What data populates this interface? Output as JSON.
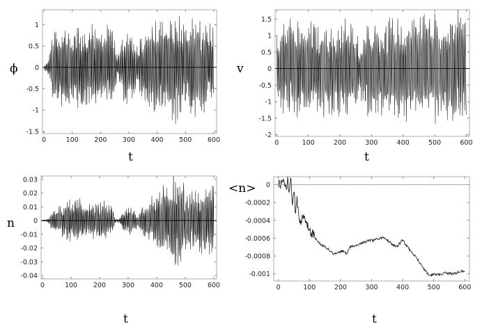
{
  "chart_data": [
    {
      "type": "line",
      "ylabel": "ϕ",
      "xlabel": "t",
      "xlim": [
        -5,
        610
      ],
      "ylim": [
        -1.55,
        1.35
      ],
      "xticks": [
        0,
        100,
        200,
        300,
        400,
        500,
        600
      ],
      "yticks": [
        1,
        0.5,
        0,
        -0.5,
        -1,
        -1.5
      ],
      "ytick_labels": [
        "1",
        "0.5",
        "0",
        "-0.5",
        "-1",
        "-1.5"
      ],
      "zero_line": true,
      "series": [
        {
          "amplitude_envelope": [
            [
              0,
              0.05
            ],
            [
              5,
              0.1
            ],
            [
              10,
              0.2
            ],
            [
              20,
              0.4
            ],
            [
              30,
              0.9
            ],
            [
              40,
              1.0
            ],
            [
              60,
              1.05
            ],
            [
              80,
              1.1
            ],
            [
              100,
              1.05
            ],
            [
              120,
              1.15
            ],
            [
              150,
              1.1
            ],
            [
              170,
              1.1
            ],
            [
              185,
              0.95
            ],
            [
              200,
              1.0
            ],
            [
              220,
              1.1
            ],
            [
              240,
              1.05
            ],
            [
              250,
              0.9
            ],
            [
              258,
              0.35
            ],
            [
              268,
              0.35
            ],
            [
              280,
              0.85
            ],
            [
              300,
              0.9
            ],
            [
              310,
              0.95
            ],
            [
              320,
              0.6
            ],
            [
              335,
              0.5
            ],
            [
              345,
              0.9
            ],
            [
              365,
              1.0
            ],
            [
              385,
              1.15
            ],
            [
              400,
              1.2
            ],
            [
              420,
              1.2
            ],
            [
              440,
              1.3
            ],
            [
              460,
              1.35
            ],
            [
              480,
              1.3
            ],
            [
              500,
              1.25
            ],
            [
              520,
              1.25
            ],
            [
              540,
              1.2
            ],
            [
              560,
              1.15
            ],
            [
              580,
              1.1
            ],
            [
              595,
              1.05
            ]
          ]
        }
      ]
    },
    {
      "type": "line",
      "ylabel": "v",
      "xlabel": "t",
      "xlim": [
        -5,
        610
      ],
      "ylim": [
        -2.05,
        1.78
      ],
      "xticks": [
        0,
        100,
        200,
        300,
        400,
        500,
        600
      ],
      "yticks": [
        1.5,
        1,
        0.5,
        0,
        -0.5,
        -1,
        -1.5,
        -2
      ],
      "ytick_labels": [
        "1.5",
        "1",
        "0.5",
        "0",
        "-0.5",
        "-1",
        "-1.5",
        "-2"
      ],
      "zero_line": true,
      "series": [
        {
          "amplitude_envelope": [
            [
              0,
              1.1
            ],
            [
              10,
              1.3
            ],
            [
              20,
              1.4
            ],
            [
              40,
              1.55
            ],
            [
              60,
              1.6
            ],
            [
              80,
              1.5
            ],
            [
              100,
              1.55
            ],
            [
              120,
              1.6
            ],
            [
              150,
              1.6
            ],
            [
              180,
              1.55
            ],
            [
              210,
              1.6
            ],
            [
              240,
              1.55
            ],
            [
              255,
              1.2
            ],
            [
              262,
              0.6
            ],
            [
              270,
              1.3
            ],
            [
              300,
              1.6
            ],
            [
              330,
              1.6
            ],
            [
              360,
              1.65
            ],
            [
              400,
              1.65
            ],
            [
              430,
              1.6
            ],
            [
              460,
              1.75
            ],
            [
              480,
              1.8
            ],
            [
              520,
              1.75
            ],
            [
              560,
              1.8
            ],
            [
              590,
              1.85
            ],
            [
              600,
              1.8
            ]
          ]
        }
      ]
    },
    {
      "type": "line",
      "ylabel": "n",
      "xlabel": "t",
      "xlim": [
        -5,
        610
      ],
      "ylim": [
        -0.0425,
        0.0325
      ],
      "xticks": [
        0,
        100,
        200,
        300,
        400,
        500,
        600
      ],
      "yticks": [
        0.03,
        0.02,
        0.01,
        0,
        -0.01,
        -0.02,
        -0.03,
        -0.04
      ],
      "ytick_labels": [
        "0.03",
        "0.02",
        "0.01",
        "0",
        "-0.01",
        "-0.02",
        "-0.03",
        "-0.04"
      ],
      "zero_line": true,
      "series": [
        {
          "amplitude_envelope": [
            [
              0,
              0.0005
            ],
            [
              15,
              0.001
            ],
            [
              25,
              0.003
            ],
            [
              30,
              0.008
            ],
            [
              40,
              0.01
            ],
            [
              60,
              0.012
            ],
            [
              80,
              0.015
            ],
            [
              100,
              0.018
            ],
            [
              120,
              0.02
            ],
            [
              140,
              0.017
            ],
            [
              160,
              0.015
            ],
            [
              180,
              0.014
            ],
            [
              200,
              0.015
            ],
            [
              220,
              0.016
            ],
            [
              240,
              0.012
            ],
            [
              250,
              0.006
            ],
            [
              258,
              0.001
            ],
            [
              268,
              0.002
            ],
            [
              280,
              0.008
            ],
            [
              300,
              0.012
            ],
            [
              320,
              0.009
            ],
            [
              335,
              0.005
            ],
            [
              350,
              0.012
            ],
            [
              370,
              0.015
            ],
            [
              390,
              0.02
            ],
            [
              410,
              0.025
            ],
            [
              430,
              0.03
            ],
            [
              450,
              0.035
            ],
            [
              470,
              0.038
            ],
            [
              490,
              0.03
            ],
            [
              510,
              0.025
            ],
            [
              530,
              0.025
            ],
            [
              550,
              0.028
            ],
            [
              570,
              0.025
            ],
            [
              590,
              0.028
            ],
            [
              600,
              0.025
            ]
          ]
        }
      ]
    },
    {
      "type": "line",
      "ylabel": "<n>",
      "xlabel": "t",
      "xlim": [
        -15,
        615
      ],
      "ylim": [
        -0.00108,
        9e-05
      ],
      "xticks": [
        0,
        100,
        200,
        300,
        400,
        500,
        600
      ],
      "yticks": [
        0,
        -0.0002,
        -0.0004,
        -0.0006,
        -0.0008,
        -0.001
      ],
      "ytick_labels": [
        "0",
        "-0.0002",
        "-0.0004",
        "-0.0006",
        "-0.0008",
        "-0.001"
      ],
      "zero_line": true,
      "series": [
        {
          "points": [
            [
              0,
              0
            ],
            [
              10,
              2e-05
            ],
            [
              20,
              0
            ],
            [
              25,
              -5e-05
            ],
            [
              30,
              4e-05
            ],
            [
              35,
              -0.0001
            ],
            [
              40,
              8e-05
            ],
            [
              45,
              -0.0002
            ],
            [
              50,
              -0.0001
            ],
            [
              55,
              -0.0003
            ],
            [
              60,
              -0.00015
            ],
            [
              65,
              -0.0003
            ],
            [
              70,
              -0.0004
            ],
            [
              80,
              -0.00038
            ],
            [
              90,
              -0.00042
            ],
            [
              100,
              -0.0005
            ],
            [
              110,
              -0.00055
            ],
            [
              120,
              -0.0006
            ],
            [
              130,
              -0.00065
            ],
            [
              140,
              -0.00068
            ],
            [
              150,
              -0.0007
            ],
            [
              160,
              -0.00072
            ],
            [
              170,
              -0.00075
            ],
            [
              180,
              -0.00078
            ],
            [
              190,
              -0.00076
            ],
            [
              200,
              -0.00075
            ],
            [
              210,
              -0.00074
            ],
            [
              220,
              -0.00078
            ],
            [
              230,
              -0.0007
            ],
            [
              250,
              -0.00068
            ],
            [
              270,
              -0.00065
            ],
            [
              290,
              -0.00063
            ],
            [
              310,
              -0.00062
            ],
            [
              330,
              -0.0006
            ],
            [
              345,
              -0.0006
            ],
            [
              360,
              -0.00065
            ],
            [
              380,
              -0.0007
            ],
            [
              400,
              -0.00062
            ],
            [
              420,
              -0.00072
            ],
            [
              440,
              -0.0008
            ],
            [
              460,
              -0.0009
            ],
            [
              480,
              -0.001
            ],
            [
              490,
              -0.00102
            ],
            [
              500,
              -0.001
            ],
            [
              520,
              -0.00101
            ],
            [
              540,
              -0.00099
            ],
            [
              560,
              -0.001
            ],
            [
              580,
              -0.00098
            ],
            [
              600,
              -0.00097
            ]
          ]
        }
      ]
    }
  ]
}
